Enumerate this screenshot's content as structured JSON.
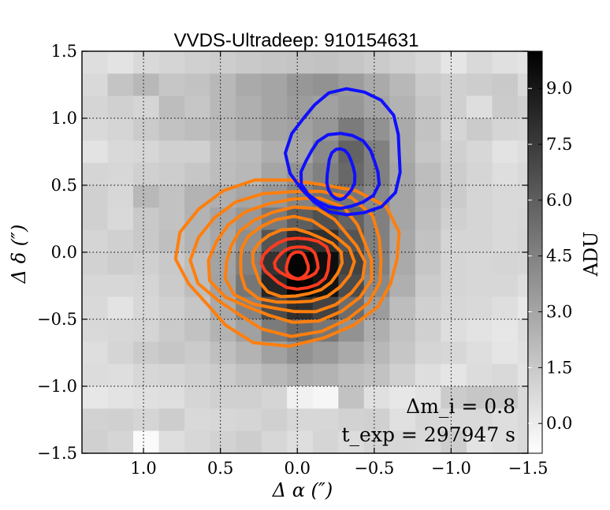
{
  "chart_data": {
    "type": "heatmap",
    "title": "VVDS-Ultradeep: 910154631",
    "xlabel": "Δ α  (″)",
    "ylabel": "Δ δ  (″)",
    "xlim": [
      1.4,
      -1.5
    ],
    "ylim": [
      -1.5,
      1.5
    ],
    "grid": true,
    "x_ticks": [
      1.0,
      0.5,
      0.0,
      -0.5,
      -1.0,
      -1.5
    ],
    "x_tick_labels": [
      "1.0",
      "0.5",
      "0.0",
      "−0.5",
      "−1.0",
      "−1.5"
    ],
    "y_ticks": [
      1.5,
      1.0,
      0.5,
      0.0,
      -0.5,
      -1.0,
      -1.5
    ],
    "y_tick_labels": [
      "1.5",
      "1.0",
      "0.5",
      "0.0",
      "−0.5",
      "−1.0",
      "−1.5"
    ],
    "colorbar": {
      "label": "ADU",
      "range": [
        -0.8,
        10.0
      ],
      "ticks": [
        9.0,
        7.5,
        6.0,
        4.5,
        3.0,
        1.5,
        0.0
      ],
      "tick_labels": [
        "9.0",
        "7.5",
        "6.0",
        "4.5",
        "3.0",
        "1.5",
        "0.0"
      ],
      "colormap": "gray_r"
    },
    "annotations": [
      {
        "text": "Δm_i = 0.8",
        "position": "bottom-right"
      },
      {
        "text": "t_exp = 297947 s",
        "position": "bottom-right"
      }
    ],
    "image": {
      "x_edges": [
        1.4,
        1.233,
        1.067,
        0.9,
        0.733,
        0.567,
        0.4,
        0.233,
        0.067,
        -0.1,
        -0.267,
        -0.433,
        -0.6,
        -0.767,
        -0.933,
        -1.1,
        -1.267,
        -1.433,
        -1.5
      ],
      "y_edges": [
        1.5,
        1.333,
        1.167,
        1.0,
        0.833,
        0.667,
        0.5,
        0.333,
        0.167,
        0.0,
        -0.167,
        -0.333,
        -0.5,
        -0.667,
        -0.833,
        -1.0,
        -1.167,
        -1.333,
        -1.5
      ],
      "values": [
        [
          0.6,
          0.4,
          0.8,
          1.0,
          1.2,
          1.3,
          1.5,
          1.6,
          1.7,
          1.8,
          1.6,
          1.4,
          1.2,
          0.9,
          0.3,
          0.8,
          0.5,
          0.4
        ],
        [
          0.8,
          1.7,
          2.2,
          1.6,
          1.8,
          2.2,
          2.8,
          3.0,
          3.6,
          3.8,
          3.4,
          2.8,
          2.2,
          1.4,
          1.2,
          1.3,
          1.5,
          0.8
        ],
        [
          1.0,
          1.2,
          1.0,
          2.0,
          1.6,
          2.2,
          2.6,
          3.0,
          3.4,
          3.2,
          3.6,
          3.0,
          2.4,
          1.6,
          1.2,
          0.6,
          1.4,
          1.2
        ],
        [
          0.8,
          1.0,
          1.4,
          1.8,
          2.0,
          2.2,
          2.6,
          3.0,
          3.2,
          3.6,
          4.8,
          3.8,
          2.8,
          1.8,
          1.0,
          1.4,
          1.0,
          0.9
        ],
        [
          0.4,
          0.8,
          0.9,
          1.2,
          1.2,
          1.9,
          2.1,
          2.6,
          3.0,
          4.2,
          5.8,
          4.6,
          2.8,
          1.6,
          1.2,
          0.9,
          0.4,
          0.6
        ],
        [
          1.0,
          0.9,
          1.2,
          1.3,
          1.6,
          2.0,
          2.2,
          3.0,
          3.8,
          4.6,
          5.6,
          4.6,
          3.0,
          2.0,
          1.3,
          1.0,
          0.6,
          0.8
        ],
        [
          1.2,
          0.9,
          2.2,
          1.8,
          2.4,
          2.6,
          3.0,
          3.6,
          4.4,
          5.2,
          5.0,
          4.2,
          3.0,
          2.0,
          1.4,
          1.0,
          0.8,
          0.8
        ],
        [
          1.2,
          0.8,
          1.5,
          1.8,
          2.4,
          3.0,
          3.6,
          4.8,
          6.0,
          6.6,
          5.8,
          4.6,
          3.0,
          1.9,
          1.2,
          1.0,
          0.8,
          0.9
        ],
        [
          1.0,
          1.2,
          1.5,
          1.9,
          2.4,
          2.9,
          4.0,
          6.4,
          8.2,
          8.0,
          6.4,
          4.6,
          2.9,
          1.8,
          1.0,
          1.0,
          0.8,
          1.0
        ],
        [
          1.1,
          1.3,
          1.2,
          1.5,
          2.0,
          3.1,
          4.6,
          7.8,
          9.8,
          9.4,
          7.2,
          4.6,
          2.8,
          1.6,
          1.0,
          0.9,
          1.0,
          0.9
        ],
        [
          0.9,
          0.9,
          1.0,
          1.4,
          2.0,
          3.2,
          5.0,
          8.4,
          10.0,
          9.2,
          6.8,
          4.2,
          2.6,
          1.4,
          1.0,
          0.9,
          0.9,
          0.6
        ],
        [
          0.8,
          0.4,
          0.9,
          1.2,
          1.6,
          2.8,
          4.4,
          6.8,
          8.0,
          7.2,
          5.4,
          3.4,
          2.0,
          1.2,
          0.9,
          0.8,
          0.6,
          0.2
        ],
        [
          0.8,
          0.9,
          1.0,
          1.4,
          1.8,
          2.4,
          3.2,
          4.8,
          5.6,
          5.0,
          3.8,
          2.6,
          1.8,
          1.2,
          0.6,
          0.4,
          0.2,
          0.6
        ],
        [
          0.6,
          1.0,
          1.4,
          1.6,
          1.4,
          1.9,
          2.4,
          3.2,
          3.8,
          3.4,
          2.8,
          2.2,
          1.6,
          1.0,
          0.9,
          0.6,
          0.3,
          0.5
        ],
        [
          0.7,
          0.6,
          0.9,
          1.0,
          1.2,
          1.4,
          1.8,
          2.2,
          2.6,
          2.4,
          2.0,
          1.8,
          1.2,
          0.6,
          0.3,
          0.7,
          0.8,
          0.4
        ],
        [
          0.2,
          0.4,
          0.5,
          0.6,
          1.0,
          1.2,
          1.2,
          1.0,
          -0.2,
          -0.4,
          1.8,
          0.5,
          0.2,
          0.4,
          1.4,
          1.6,
          1.5,
          0.8
        ],
        [
          1.1,
          1.2,
          1.0,
          1.3,
          0.8,
          0.9,
          1.0,
          1.2,
          0.9,
          0.9,
          1.1,
          1.2,
          0.5,
          0.9,
          0.8,
          0.8,
          0.6,
          0.8
        ],
        [
          1.2,
          1.0,
          -0.6,
          0.6,
          0.9,
          1.1,
          1.3,
          0.9,
          0.6,
          1.0,
          0.7,
          1.0,
          0.9,
          0.8,
          1.3,
          0.4,
          0.6,
          0.8
        ]
      ]
    },
    "contours": [
      {
        "name": "orange",
        "color": "#ff7f0e",
        "levels": [
          {
            "cx": 0.05,
            "cy": -0.05,
            "rx": 0.72,
            "ry": 0.62
          },
          {
            "cx": 0.04,
            "cy": -0.06,
            "rx": 0.62,
            "ry": 0.54
          },
          {
            "cx": 0.03,
            "cy": -0.06,
            "rx": 0.53,
            "ry": 0.46
          },
          {
            "cx": 0.02,
            "cy": -0.07,
            "rx": 0.45,
            "ry": 0.39
          },
          {
            "cx": 0.02,
            "cy": -0.07,
            "rx": 0.37,
            "ry": 0.32
          },
          {
            "cx": 0.01,
            "cy": -0.08,
            "rx": 0.29,
            "ry": 0.25
          }
        ]
      },
      {
        "name": "red",
        "color": "#ff3b1f",
        "levels": [
          {
            "cx": 0.0,
            "cy": -0.08,
            "rx": 0.22,
            "ry": 0.19
          },
          {
            "cx": 0.0,
            "cy": -0.08,
            "rx": 0.14,
            "ry": 0.12
          },
          {
            "cx": 0.0,
            "cy": -0.1,
            "rx": 0.07,
            "ry": 0.1
          }
        ]
      },
      {
        "name": "blue",
        "color": "#1010ff",
        "levels": [
          {
            "cx": -0.32,
            "cy": 0.74,
            "rx": 0.37,
            "ry": 0.47
          },
          {
            "cx": -0.28,
            "cy": 0.6,
            "rx": 0.25,
            "ry": 0.28
          },
          {
            "cx": -0.28,
            "cy": 0.58,
            "rx": 0.09,
            "ry": 0.19
          }
        ]
      }
    ]
  }
}
